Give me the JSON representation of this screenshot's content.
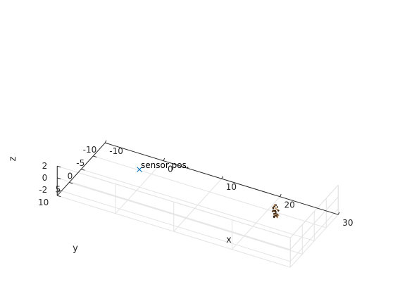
{
  "chart_data": {
    "type": "scatter3d",
    "xlabel": "x",
    "ylabel": "y",
    "zlabel": "z",
    "xlim": [
      -10,
      30
    ],
    "ylim": [
      -10,
      10
    ],
    "zlim": [
      -3,
      2
    ],
    "x_ticks": [
      -10,
      0,
      10,
      20,
      30
    ],
    "y_ticks": [
      -10,
      -5,
      0,
      5,
      10
    ],
    "z_ticks": [
      -2,
      0,
      2
    ],
    "grid": true,
    "colors": {
      "sensor": "#0072bd",
      "cloud_dark": "#3d2410",
      "cloud_light": "#b58a5c"
    },
    "sensor": {
      "x": 0,
      "y": 0,
      "z": 0,
      "marker": "x",
      "label": "sensor pos."
    },
    "point_cloud": [
      [
        23.4,
        0.8,
        1.2
      ],
      [
        23.5,
        0.6,
        1.4
      ],
      [
        23.3,
        0.9,
        1.0
      ],
      [
        23.6,
        0.5,
        0.8
      ],
      [
        23.4,
        1.1,
        0.6
      ],
      [
        23.7,
        0.7,
        0.3
      ],
      [
        23.5,
        1.0,
        0.0
      ],
      [
        23.8,
        0.4,
        -0.2
      ],
      [
        23.6,
        1.2,
        -0.4
      ],
      [
        23.9,
        0.6,
        -0.6
      ],
      [
        23.3,
        0.3,
        0.9
      ],
      [
        23.5,
        1.3,
        1.1
      ],
      [
        23.7,
        0.2,
        0.5
      ],
      [
        23.4,
        0.7,
        -0.1
      ],
      [
        23.8,
        1.0,
        0.2
      ],
      [
        24.0,
        0.8,
        -0.3
      ],
      [
        23.6,
        0.4,
        1.3
      ],
      [
        23.3,
        1.0,
        0.4
      ],
      [
        23.9,
        1.2,
        0.1
      ],
      [
        23.5,
        0.5,
        -0.5
      ],
      [
        24.1,
        0.6,
        0.6
      ],
      [
        23.7,
        1.4,
        0.7
      ],
      [
        23.4,
        0.2,
        0.2
      ],
      [
        24.0,
        1.1,
        -0.1
      ],
      [
        23.6,
        0.9,
        1.5
      ],
      [
        23.8,
        0.3,
        1.0
      ],
      [
        23.5,
        0.8,
        0.5
      ],
      [
        24.2,
        0.9,
        0.0
      ],
      [
        23.9,
        0.2,
        0.4
      ],
      [
        23.6,
        1.3,
        -0.2
      ]
    ]
  }
}
